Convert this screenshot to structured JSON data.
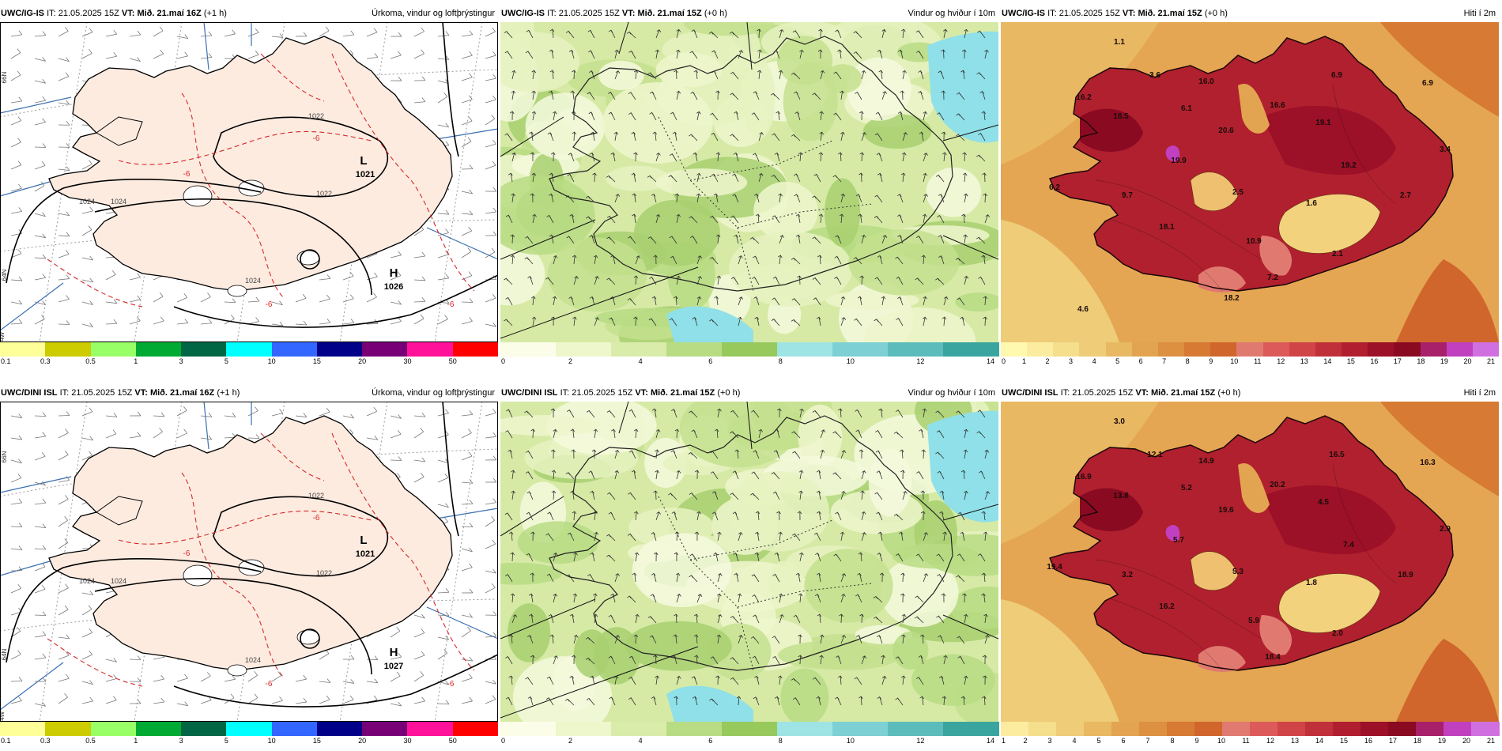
{
  "panels": [
    {
      "model": "UWC/IG-IS",
      "it_label": "IT:",
      "issue": "21.05.2025 15Z",
      "vt_label": "VT:",
      "valid": "Mið. 21.maí 16Z",
      "lead": "(+1 h)",
      "field": "Úrkoma, vindur og loftþrýstingur",
      "type": "precip",
      "labels": [
        {
          "text": "L"
        },
        {
          "text": "1021"
        },
        {
          "text": "H"
        },
        {
          "text": "1026"
        },
        {
          "text": "1022"
        },
        {
          "text": "1022"
        },
        {
          "text": "1024"
        },
        {
          "text": "1024"
        },
        {
          "text": "1024"
        },
        {
          "text": "-6"
        },
        {
          "text": "-6"
        },
        {
          "text": "-6"
        },
        {
          "text": "-6"
        },
        {
          "text": "66N"
        },
        {
          "text": "64N"
        },
        {
          "text": "24W"
        }
      ]
    },
    {
      "model": "UWC/IG-IS",
      "it_label": "IT:",
      "issue": "21.05.2025 15Z",
      "vt_label": "VT:",
      "valid": "Mið. 21.maí 15Z",
      "lead": "(+0 h)",
      "field": "Vindur og hviður í 10m",
      "type": "wind",
      "labels": []
    },
    {
      "model": "UWC/IG-IS",
      "it_label": "IT:",
      "issue": "21.05.2025 15Z",
      "vt_label": "VT:",
      "valid": "Mið. 21.maí 15Z",
      "lead": "(+0 h)",
      "field": "Hiti í 2m",
      "type": "temp",
      "labels": [
        {
          "text": "1.1"
        },
        {
          "text": "3.6"
        },
        {
          "text": "16.0"
        },
        {
          "text": "6.9"
        },
        {
          "text": "6.9"
        },
        {
          "text": "16.2"
        },
        {
          "text": "16.5"
        },
        {
          "text": "6.1"
        },
        {
          "text": "20.6"
        },
        {
          "text": "16.6"
        },
        {
          "text": "19.1"
        },
        {
          "text": "3.4"
        },
        {
          "text": "19.9"
        },
        {
          "text": "19.2"
        },
        {
          "text": "6.2"
        },
        {
          "text": "9.7"
        },
        {
          "text": "2.5"
        },
        {
          "text": "1.6"
        },
        {
          "text": "2.7"
        },
        {
          "text": "18.1"
        },
        {
          "text": "10.9"
        },
        {
          "text": "2.1"
        },
        {
          "text": "7.2"
        },
        {
          "text": "18.2"
        },
        {
          "text": "4.6"
        }
      ]
    },
    {
      "model": "UWC/DINI ISL",
      "it_label": "IT:",
      "issue": "21.05.2025 15Z",
      "vt_label": "VT:",
      "valid": "Mið. 21.maí 16Z",
      "lead": "(+1 h)",
      "field": "Úrkoma, vindur og loftþrýstingur",
      "type": "precip",
      "labels": [
        {
          "text": "L"
        },
        {
          "text": "1021"
        },
        {
          "text": "H"
        },
        {
          "text": "1027"
        },
        {
          "text": "1022"
        },
        {
          "text": "1022"
        },
        {
          "text": "1024"
        },
        {
          "text": "1024"
        },
        {
          "text": "1024"
        },
        {
          "text": "-6"
        },
        {
          "text": "-6"
        },
        {
          "text": "-6"
        },
        {
          "text": "-6"
        },
        {
          "text": "66N"
        },
        {
          "text": "64N"
        },
        {
          "text": "24W"
        }
      ]
    },
    {
      "model": "UWC/DINI ISL",
      "it_label": "IT:",
      "issue": "21.05.2025 15Z",
      "vt_label": "VT:",
      "valid": "Mið. 21.maí 15Z",
      "lead": "(+0 h)",
      "field": "Vindur og hviður í 10m",
      "type": "wind",
      "labels": []
    },
    {
      "model": "UWC/DINI ISL",
      "it_label": "IT:",
      "issue": "21.05.2025 15Z",
      "vt_label": "VT:",
      "valid": "Mið. 21.maí 15Z",
      "lead": "(+0 h)",
      "field": "Hiti í 2m",
      "type": "temp",
      "labels": [
        {
          "text": "3.0"
        },
        {
          "text": "12.1"
        },
        {
          "text": "14.9"
        },
        {
          "text": "16.5"
        },
        {
          "text": "16.3"
        },
        {
          "text": "16.9"
        },
        {
          "text": "13.8"
        },
        {
          "text": "5.2"
        },
        {
          "text": "19.6"
        },
        {
          "text": "20.2"
        },
        {
          "text": "4.5"
        },
        {
          "text": "2.9"
        },
        {
          "text": "5.7"
        },
        {
          "text": "7.4"
        },
        {
          "text": "19.4"
        },
        {
          "text": "3.2"
        },
        {
          "text": "5.3"
        },
        {
          "text": "1.8"
        },
        {
          "text": "18.9"
        },
        {
          "text": "16.2"
        },
        {
          "text": "5.9"
        },
        {
          "text": "2.0"
        },
        {
          "text": "18.4"
        }
      ]
    }
  ],
  "colorbars": {
    "precip": {
      "colors": [
        "#ffff99",
        "#cccc00",
        "#99ff66",
        "#00aa33",
        "#006644",
        "#00ffff",
        "#3366ff",
        "#000088",
        "#770077",
        "#ff1199",
        "#ff0000"
      ],
      "ticks": [
        "0.1",
        "0.3",
        "0.5",
        "1",
        "3",
        "5",
        "10",
        "15",
        "20",
        "30",
        "50"
      ]
    },
    "wind": {
      "colors": [
        "#fcfde8",
        "#eef6cc",
        "#d9ecaa",
        "#b8dc84",
        "#98c95c",
        "#9ee4e4",
        "#7dd0d4",
        "#5cbcbc",
        "#3aa59f"
      ],
      "ticks": [
        "0",
        "2",
        "4",
        "6",
        "8",
        "10",
        "12",
        "14"
      ]
    },
    "temp_top": {
      "colors": [
        "#fff9b0",
        "#fbeca0",
        "#f5de8c",
        "#eecc78",
        "#e8b862",
        "#e2a450",
        "#dc9040",
        "#d67a34",
        "#d0662c",
        "#e07a70",
        "#dc5a5a",
        "#d04448",
        "#c0303a",
        "#b01e30",
        "#9c1028",
        "#8a0a22",
        "#a8206a",
        "#c040c0",
        "#d070e0"
      ],
      "ticks": [
        "0",
        "1",
        "2",
        "3",
        "4",
        "5",
        "6",
        "7",
        "8",
        "9",
        "10",
        "11",
        "12",
        "13",
        "14",
        "15",
        "16",
        "17",
        "18",
        "19",
        "20",
        "21"
      ]
    },
    "temp_bottom": {
      "colors": [
        "#fbeca0",
        "#f5de8c",
        "#eecc78",
        "#e8b862",
        "#e2a450",
        "#dc9040",
        "#d67a34",
        "#d0662c",
        "#e07a70",
        "#dc5a5a",
        "#d04448",
        "#c0303a",
        "#b01e30",
        "#9c1028",
        "#8a0a22",
        "#a8206a",
        "#c040c0",
        "#d070e0"
      ],
      "ticks": [
        "1",
        "2",
        "3",
        "4",
        "5",
        "6",
        "7",
        "8",
        "9",
        "10",
        "11",
        "12",
        "13",
        "14",
        "15",
        "16",
        "17",
        "18",
        "19",
        "20",
        "21"
      ]
    }
  }
}
